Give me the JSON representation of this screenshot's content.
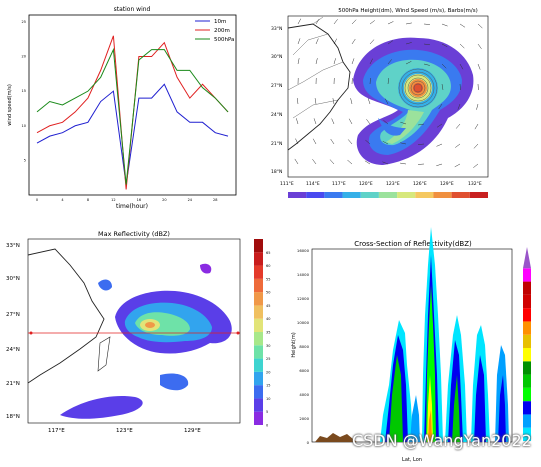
{
  "watermark": "CSDN @WangYan2022",
  "chart_data": [
    {
      "type": "line",
      "title": "station wind",
      "xlabel": "time(hour)",
      "ylabel": "wind speed(m/s)",
      "x": [
        0,
        2,
        4,
        6,
        8,
        10,
        12,
        14,
        16,
        18,
        20,
        22,
        24,
        26,
        28,
        30
      ],
      "ylim": [
        0,
        26
      ],
      "series": [
        {
          "name": "10m",
          "color": "#1f1fd0",
          "values": [
            7.5,
            8.5,
            9,
            10,
            10.5,
            13.5,
            15,
            1.5,
            14,
            14,
            16,
            12,
            10.5,
            10.5,
            9,
            8.5
          ]
        },
        {
          "name": "200m",
          "color": "#e02020",
          "values": [
            9,
            10,
            10.5,
            12,
            14,
            18,
            23,
            0.8,
            20,
            20,
            22,
            17,
            14,
            16,
            14,
            12
          ]
        },
        {
          "name": "500hPa",
          "color": "#1a8a1a",
          "values": [
            12,
            13.5,
            13,
            14,
            15,
            17,
            21,
            1.5,
            19.5,
            21,
            21,
            18,
            18,
            15.5,
            14,
            12
          ]
        }
      ]
    },
    {
      "type": "heatmap",
      "title": "500hPa Height(dm), Wind Speed (m/s), Barbs(m/s)",
      "yticks": [
        "33°N",
        "30°N",
        "27°N",
        "24°N",
        "21°N",
        "18°N"
      ],
      "xticks": [
        "111°E",
        "114°E",
        "117°E",
        "120°E",
        "123°E",
        "126°E",
        "129°E",
        "132°E"
      ],
      "colorbar_colors": [
        "#6a3fd6",
        "#4a4af0",
        "#3a7af0",
        "#35b0e8",
        "#5fd2c8",
        "#9be29c",
        "#d7e87c",
        "#f5c860",
        "#f09040",
        "#e05030",
        "#c82020"
      ]
    },
    {
      "type": "heatmap",
      "title": "Max Reflectivity (dBZ)",
      "yticks": [
        "33°N",
        "30°N",
        "27°N",
        "24°N",
        "21°N",
        "18°N"
      ],
      "xticks": [
        "117°E",
        "123°E",
        "129°E"
      ],
      "colorbar_ticks": [
        "0",
        "5",
        "10",
        "15",
        "20",
        "25",
        "30",
        "35",
        "40",
        "45",
        "50",
        "55",
        "60",
        "65"
      ],
      "colorbar_colors": [
        "#8a2be2",
        "#5a3ee8",
        "#3c6cf0",
        "#32a4ee",
        "#3ed4d0",
        "#6ee2a8",
        "#a8e88a",
        "#e2e478",
        "#f0c060",
        "#f09848",
        "#ee6a3a",
        "#e43a2a",
        "#c81c1c",
        "#a00c0c"
      ]
    },
    {
      "type": "heatmap",
      "title": "Cross-Section of Reflectivity(dBZ)",
      "xlabel": "Lat, Lon",
      "ylabel": "Height(m)",
      "yticks": [
        "0",
        "2000",
        "4000",
        "6000",
        "8000",
        "10000",
        "12000",
        "14000",
        "16000"
      ],
      "colorbar_colors": [
        "#00e5ff",
        "#00a0ff",
        "#0000f0",
        "#00ff00",
        "#00c800",
        "#009000",
        "#ffff00",
        "#e8c000",
        "#ff9000",
        "#ff0000",
        "#d00000",
        "#c00000",
        "#ff00ff",
        "#9955c9"
      ]
    }
  ]
}
